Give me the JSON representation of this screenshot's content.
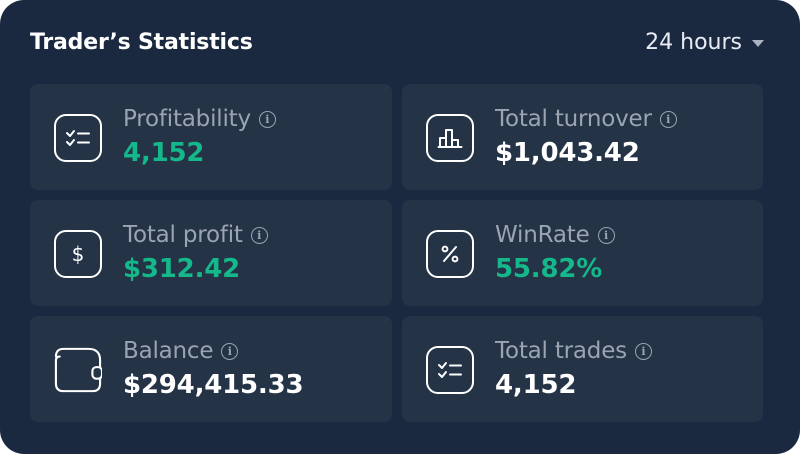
{
  "header": {
    "title": "Trader’s Statistics",
    "period": "24 hours"
  },
  "cards": [
    {
      "label": "Profitability",
      "value": "4,152",
      "icon": "checklist-icon",
      "value_color": "#14b88a"
    },
    {
      "label": "Total turnover",
      "value": "$1,043.42",
      "icon": "bar-chart-icon",
      "value_color": "#ffffff"
    },
    {
      "label": "Total profit",
      "value": "$312.42",
      "icon": "dollar-icon",
      "value_color": "#14b88a"
    },
    {
      "label": "WinRate",
      "value": "55.82%",
      "icon": "percent-icon",
      "value_color": "#14b88a"
    },
    {
      "label": "Balance",
      "value": "$294,415.33",
      "icon": "wallet-icon",
      "value_color": "#ffffff"
    },
    {
      "label": "Total trades",
      "value": "4,152",
      "icon": "checklist-icon",
      "value_color": "#ffffff"
    }
  ],
  "colors": {
    "panel_bg": "#1b2940",
    "card_bg": "#253347",
    "positive": "#14b88a",
    "muted_text": "#9aa4b3"
  }
}
